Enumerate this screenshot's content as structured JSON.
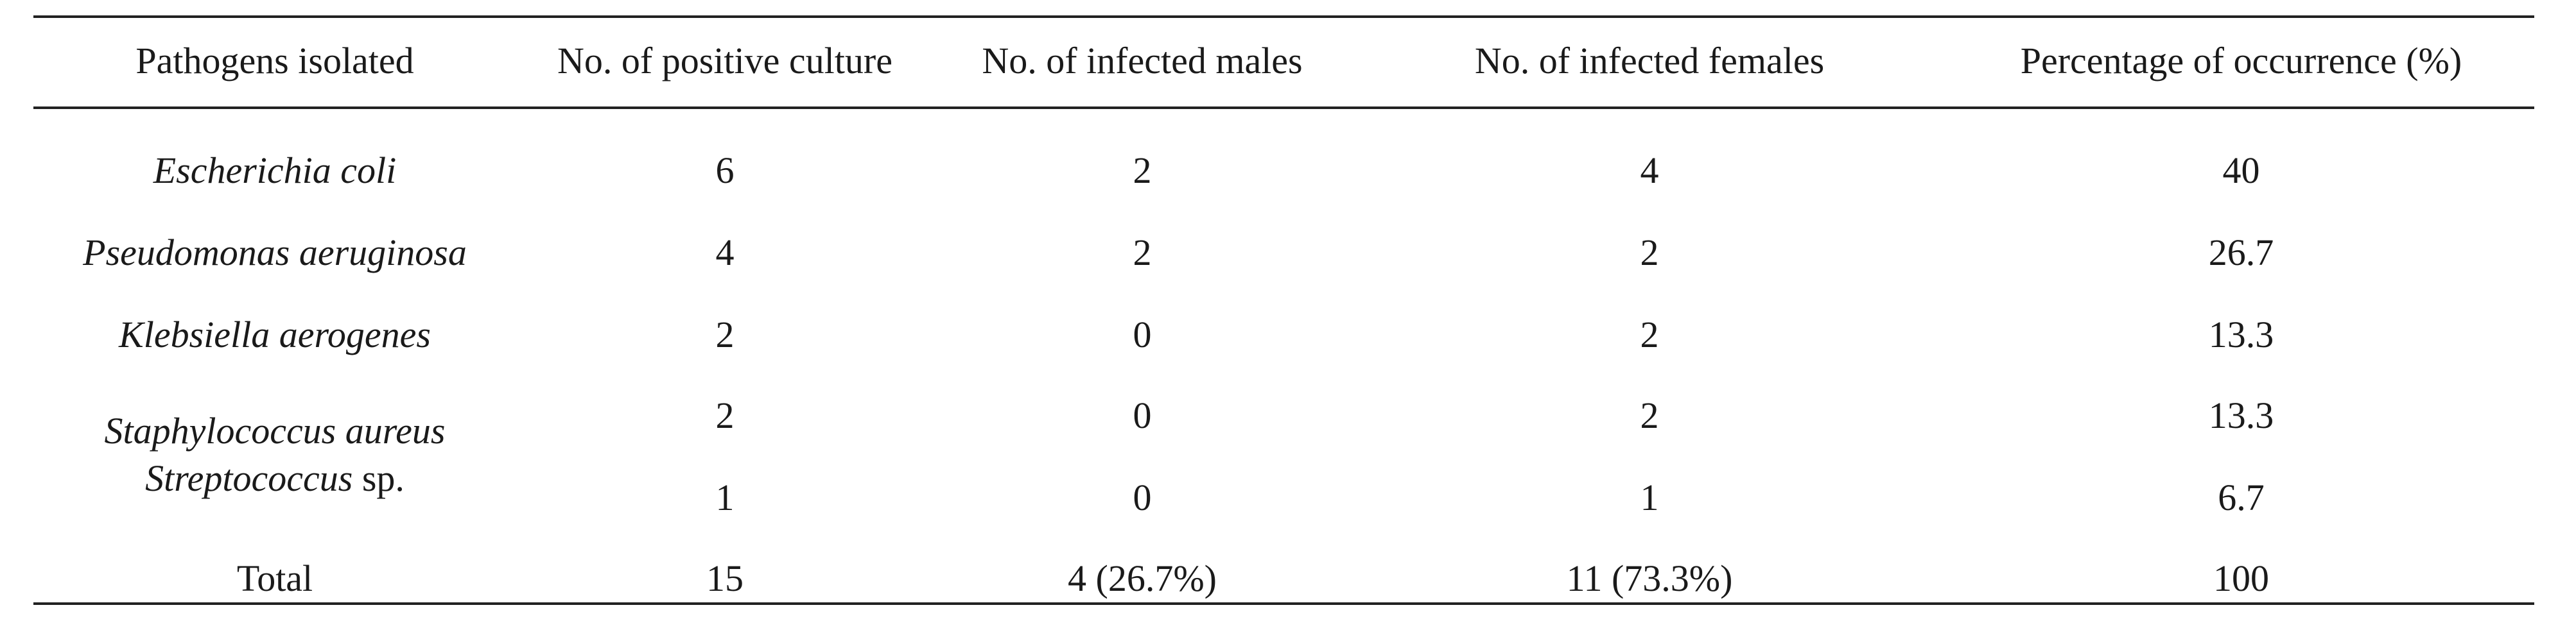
{
  "table": {
    "headers": [
      "Pathogens isolated",
      "No. of positive culture",
      "No. of infected males",
      "No. of infected females",
      "Percentage of occurrence (%)"
    ],
    "rows": [
      {
        "pathogen": "Escherichia coli",
        "positive": "6",
        "males": "2",
        "females": "4",
        "percentage": "40"
      },
      {
        "pathogen": "Pseudomonas aeruginosa",
        "positive": "4",
        "males": "2",
        "females": "2",
        "percentage": "26.7"
      },
      {
        "pathogen": "Klebsiella aerogenes",
        "positive": "2",
        "males": "0",
        "females": "2",
        "percentage": "13.3"
      },
      {
        "pathogen": "Staphylococcus aureus",
        "positive": "2",
        "males": "0",
        "females": "2",
        "percentage": "13.3"
      },
      {
        "pathogen_genus": "Streptococcus",
        "pathogen_suffix": "sp.",
        "positive": "1",
        "males": "0",
        "females": "1",
        "percentage": "6.7"
      }
    ],
    "total": {
      "label": "Total",
      "positive": "15",
      "males": "4 (26.7%)",
      "females": "11 (73.3%)",
      "percentage": "100"
    }
  }
}
